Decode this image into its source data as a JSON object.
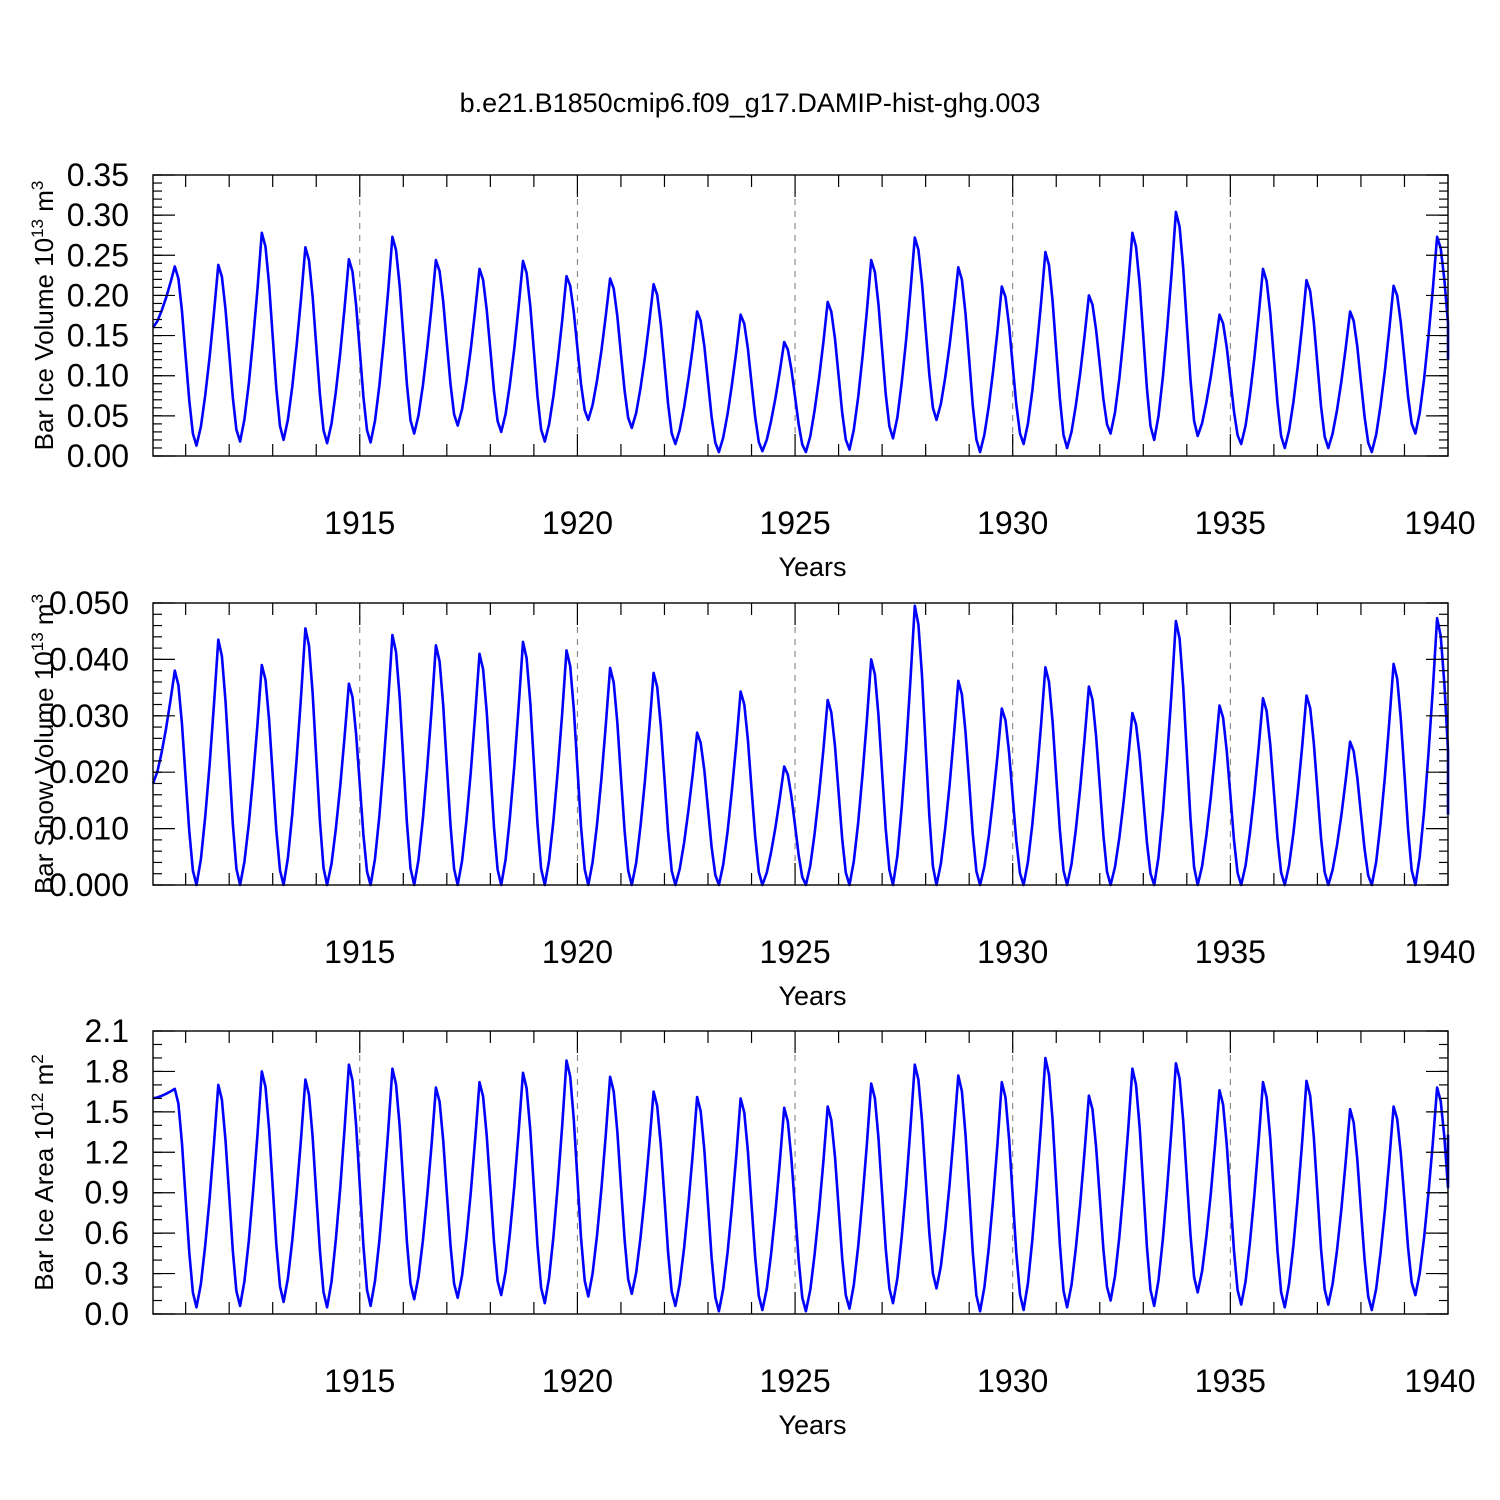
{
  "title": "b.e21.B1850cmip6.f09_g17.DAMIP-hist-ghg.003",
  "chart_data": [
    {
      "type": "line",
      "ylabel": "Bar Ice Volume 10",
      "ylabel_exp": "13",
      "ylabel_unit": " m",
      "ylabel_unit_exp": "3",
      "xlabel": "Years",
      "xlim": [
        1910.25,
        1940.0
      ],
      "ylim": [
        0,
        0.35
      ],
      "x_ticks": [
        "1915",
        "1920",
        "1925",
        "1930",
        "1935",
        "1940"
      ],
      "x_tick_values": [
        1915,
        1920,
        1925,
        1930,
        1935,
        1940
      ],
      "y_ticks": [
        "0.00",
        "0.05",
        "0.10",
        "0.15",
        "0.20",
        "0.25",
        "0.30",
        "0.35"
      ],
      "y_tick_values": [
        0,
        0.05,
        0.1,
        0.15,
        0.2,
        0.25,
        0.3,
        0.35
      ],
      "y_minor_step": 0.01,
      "vgrid": [
        1915,
        1920,
        1925,
        1930,
        1935
      ],
      "color": "#0000ff",
      "peaks": [
        0.236,
        0.238,
        0.278,
        0.26,
        0.245,
        0.273,
        0.244,
        0.233,
        0.243,
        0.224,
        0.221,
        0.214,
        0.18,
        0.176,
        0.142,
        0.192,
        0.244,
        0.272,
        0.235,
        0.211,
        0.254,
        0.2,
        0.278,
        0.304,
        0.176,
        0.233,
        0.219,
        0.18,
        0.212,
        0.273
      ],
      "troughs": [
        0.16,
        0.013,
        0.018,
        0.02,
        0.016,
        0.017,
        0.028,
        0.038,
        0.03,
        0.018,
        0.045,
        0.035,
        0.015,
        0.005,
        0.006,
        0.005,
        0.008,
        0.022,
        0.045,
        0.005,
        0.015,
        0.01,
        0.028,
        0.02,
        0.025,
        0.015,
        0.01,
        0.01,
        0.005,
        0.028,
        0.058,
        0.12
      ]
    },
    {
      "type": "line",
      "ylabel": "Bar Snow Volume 10",
      "ylabel_exp": "13",
      "ylabel_unit": " m",
      "ylabel_unit_exp": "3",
      "xlabel": "Years",
      "xlim": [
        1910.25,
        1940.0
      ],
      "ylim": [
        0,
        0.05
      ],
      "x_ticks": [
        "1915",
        "1920",
        "1925",
        "1930",
        "1935",
        "1940"
      ],
      "x_tick_values": [
        1915,
        1920,
        1925,
        1930,
        1935,
        1940
      ],
      "y_ticks": [
        "0.000",
        "0.010",
        "0.020",
        "0.030",
        "0.040",
        "0.050"
      ],
      "y_tick_values": [
        0,
        0.01,
        0.02,
        0.03,
        0.04,
        0.05
      ],
      "y_minor_step": 0.002,
      "vgrid": [
        1915,
        1920,
        1925,
        1930,
        1935
      ],
      "color": "#0000ff",
      "peaks": [
        0.038,
        0.0435,
        0.039,
        0.0455,
        0.0357,
        0.0443,
        0.0425,
        0.041,
        0.0431,
        0.0416,
        0.0385,
        0.0376,
        0.027,
        0.0343,
        0.021,
        0.0328,
        0.04,
        0.0495,
        0.0362,
        0.0313,
        0.0386,
        0.0352,
        0.0305,
        0.0468,
        0.0318,
        0.0331,
        0.0336,
        0.0254,
        0.0392,
        0.0473
      ],
      "troughs": [
        0.018,
        0.0,
        0.0,
        0.0,
        0.0,
        0.0,
        0.0,
        0.0,
        0.0,
        0.0,
        0.0,
        0.0,
        0.0,
        0.0,
        0.0,
        0.0,
        0.0,
        0.0,
        0.0,
        0.0,
        0.0,
        0.0,
        0.0,
        0.0,
        0.0,
        0.0,
        0.0,
        0.0,
        0.0,
        0.0,
        0.0005,
        0.0125
      ]
    },
    {
      "type": "line",
      "ylabel": "Bar Ice Area 10",
      "ylabel_exp": "12",
      "ylabel_unit": " m",
      "ylabel_unit_exp": "2",
      "xlabel": "Years",
      "xlim": [
        1910.25,
        1940.0
      ],
      "ylim": [
        0,
        2.1
      ],
      "x_ticks": [
        "1915",
        "1920",
        "1925",
        "1930",
        "1935",
        "1940"
      ],
      "x_tick_values": [
        1915,
        1920,
        1925,
        1930,
        1935,
        1940
      ],
      "y_ticks": [
        "0.0",
        "0.3",
        "0.6",
        "0.9",
        "1.2",
        "1.5",
        "1.8",
        "2.1"
      ],
      "y_tick_values": [
        0,
        0.3,
        0.6,
        0.9,
        1.2,
        1.5,
        1.8,
        2.1
      ],
      "y_minor_step": 0.1,
      "vgrid": [
        1915,
        1920,
        1925,
        1930,
        1935
      ],
      "color": "#0000ff",
      "peaks": [
        1.67,
        1.7,
        1.8,
        1.74,
        1.85,
        1.82,
        1.68,
        1.72,
        1.79,
        1.88,
        1.76,
        1.65,
        1.61,
        1.6,
        1.53,
        1.54,
        1.71,
        1.85,
        1.77,
        1.72,
        1.9,
        1.62,
        1.82,
        1.86,
        1.66,
        1.72,
        1.73,
        1.52,
        1.54,
        1.68
      ],
      "troughs": [
        1.6,
        0.05,
        0.06,
        0.09,
        0.05,
        0.06,
        0.11,
        0.12,
        0.14,
        0.08,
        0.13,
        0.15,
        0.06,
        0.02,
        0.03,
        0.02,
        0.04,
        0.08,
        0.19,
        0.02,
        0.03,
        0.05,
        0.1,
        0.06,
        0.16,
        0.07,
        0.05,
        0.07,
        0.03,
        0.14,
        0.2,
        1.33
      ]
    }
  ]
}
